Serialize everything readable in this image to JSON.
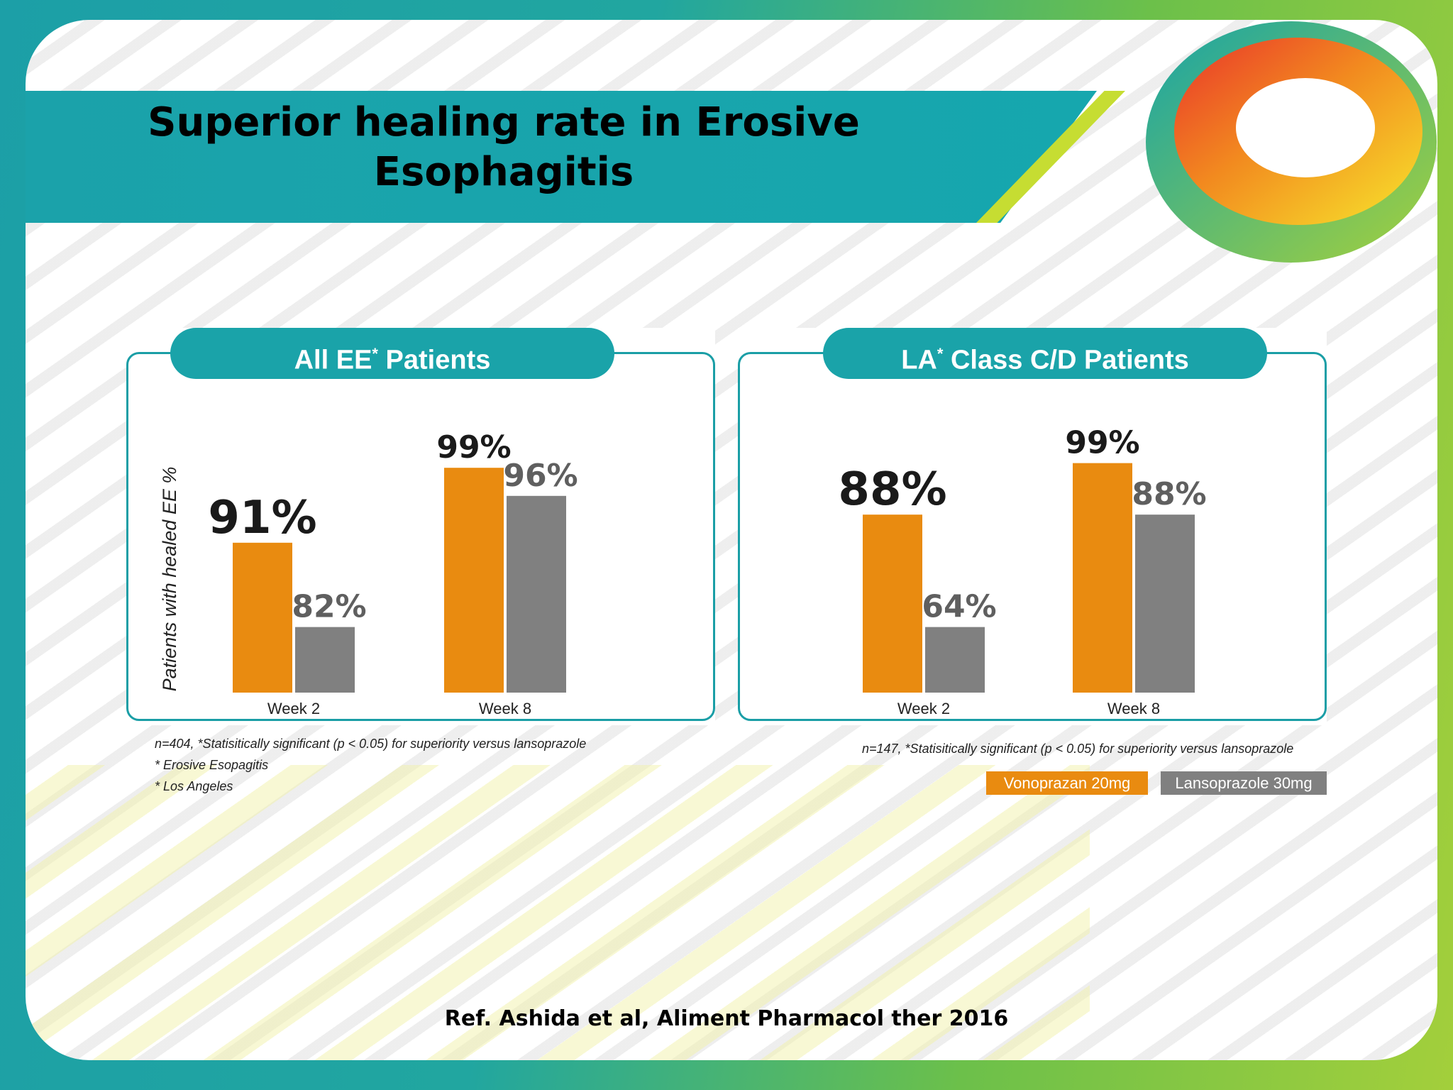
{
  "title": "Superior healing rate in Erosive Esophagitis",
  "colors": {
    "vonoprazan": "#e98b10",
    "lansoprazole": "#808080",
    "teal": "#1aa3a9"
  },
  "legend": {
    "vonoprazan": "Vonoprazan 20mg",
    "lansoprazole": "Lansoprazole 30mg"
  },
  "chart_data": [
    {
      "type": "bar",
      "title": "All EE",
      "title_mark": "*",
      "title_suffix": "Patients",
      "ylabel": "Patients with healed EE %",
      "categories": [
        "Week 2",
        "Week 8"
      ],
      "series": [
        {
          "name": "Vonoprazan 20mg",
          "values": [
            91,
            99
          ],
          "labels": [
            "91%",
            "99%"
          ]
        },
        {
          "name": "Lansoprazole 30mg",
          "values": [
            82,
            96
          ],
          "labels": [
            "82%",
            "96%"
          ]
        }
      ],
      "ylim": [
        75,
        100
      ],
      "footnote": "n=404, *Statisitically significant (p < 0.05) for superiority versus lansoprazole",
      "notes": [
        "* Erosive Esopagitis",
        "* Los Angeles"
      ]
    },
    {
      "type": "bar",
      "title": "LA",
      "title_mark": "*",
      "title_suffix": "Class C/D Patients",
      "ylabel": "",
      "categories": [
        "Week 2",
        "Week 8"
      ],
      "series": [
        {
          "name": "Vonoprazan 20mg",
          "values": [
            88,
            99
          ],
          "labels": [
            "88%",
            "99%"
          ]
        },
        {
          "name": "Lansoprazole 30mg",
          "values": [
            64,
            88
          ],
          "labels": [
            "64%",
            "88%"
          ]
        }
      ],
      "ylim": [
        50,
        100
      ],
      "footnote": "n=147, *Statisitically significant (p < 0.05) for superiority versus lansoprazole",
      "notes": []
    }
  ],
  "reference": "Ref. Ashida et al, Aliment Pharmacol ther 2016"
}
